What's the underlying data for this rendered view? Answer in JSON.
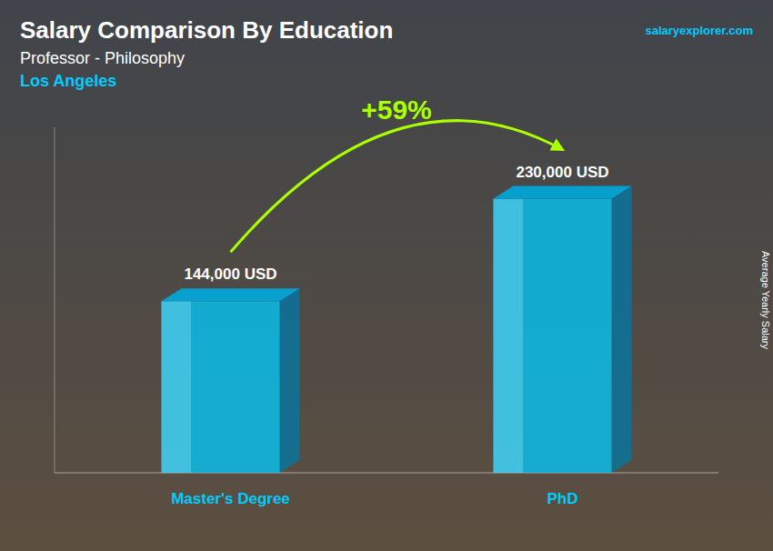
{
  "chart_data": {
    "type": "bar",
    "title": "Salary Comparison By Education",
    "subtitle": "Professor - Philosophy",
    "annotations": [
      "Los Angeles",
      "+59%",
      "salaryexplorer.com"
    ],
    "ylabel": "Average Yearly Salary",
    "categories": [
      "Master's Degree",
      "PhD"
    ],
    "values": [
      144000,
      230000
    ],
    "value_labels": [
      "144,000 USD",
      "230,000 USD"
    ],
    "color": "#00CCFF",
    "ylim": [
      0,
      290000
    ],
    "data_labels": true,
    "tick_labels": false,
    "grid": false
  }
}
